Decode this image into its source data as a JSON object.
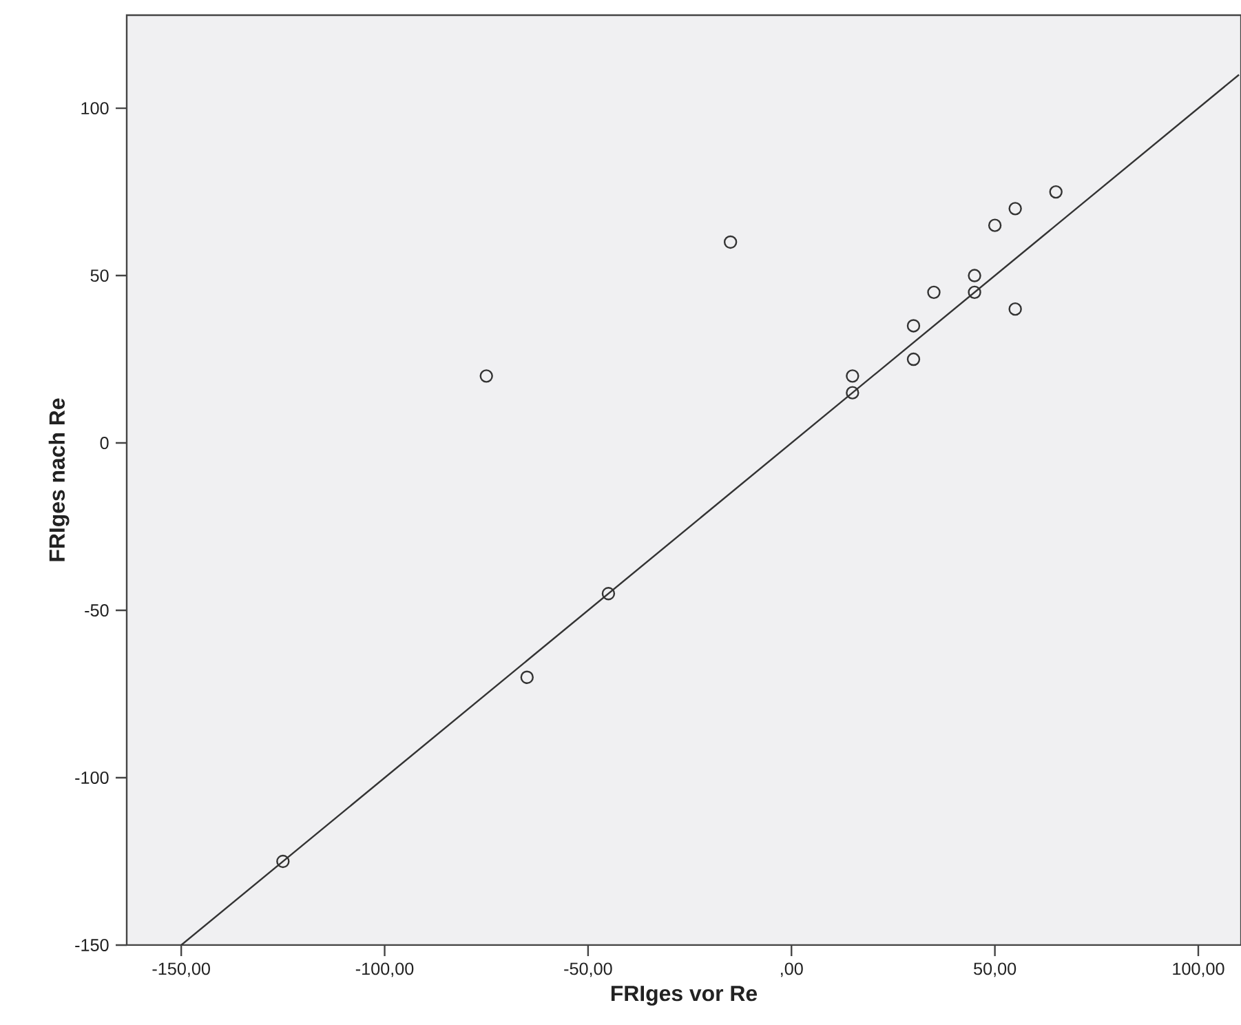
{
  "chart_data": {
    "type": "scatter",
    "xlabel": "FRIges vor Re",
    "ylabel": "FRIges nach Re",
    "xlim": [
      -163.4,
      110.5
    ],
    "ylim": [
      -150,
      127.8
    ],
    "xticks": [
      {
        "value": -150,
        "label": "-150,00"
      },
      {
        "value": -100,
        "label": "-100,00"
      },
      {
        "value": -50,
        "label": "-50,00"
      },
      {
        "value": 0,
        "label": ",00"
      },
      {
        "value": 50,
        "label": "50,00"
      },
      {
        "value": 100,
        "label": "100,00"
      }
    ],
    "yticks": [
      -150,
      -100,
      -50,
      0,
      50,
      100
    ],
    "grid": false,
    "marker": "circle",
    "series": [
      {
        "color": "#333333",
        "x": [
          -125,
          -75,
          -65,
          -45,
          -15,
          15,
          15,
          30,
          30,
          35,
          45,
          45,
          50,
          55,
          55,
          65
        ],
        "values": [
          -125,
          20,
          -70,
          -45,
          60,
          20,
          15,
          35,
          25,
          45,
          50,
          45,
          65,
          70,
          40,
          75
        ]
      },
      {
        "type": "line",
        "color": "#333333",
        "line_style": "solid",
        "marker": "none",
        "x": [
          -150,
          110
        ],
        "values": [
          -150,
          110
        ]
      }
    ]
  }
}
